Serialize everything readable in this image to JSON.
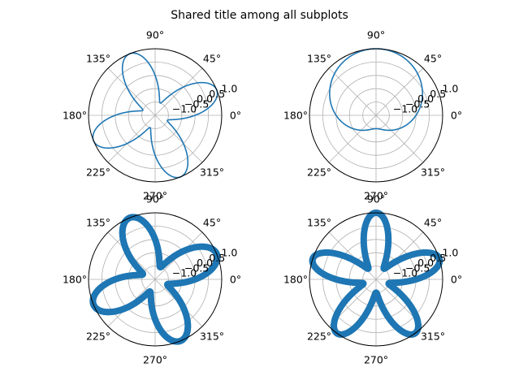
{
  "figure": {
    "suptitle": "Shared title among all subplots"
  },
  "colors": {
    "series": "#1f77b4",
    "grid": "#b0b0b0",
    "spine": "#000000"
  },
  "chart_data": [
    {
      "type": "line",
      "projection": "polar",
      "position": "top-left",
      "function": "r = sin(4*theta)",
      "theta_ticks": [
        "0°",
        "45°",
        "90°",
        "135°",
        "180°",
        "225°",
        "270°",
        "315°"
      ],
      "r_ticks": [
        "−1.0",
        "−0.5",
        "0.0",
        "0.5",
        "1.0"
      ],
      "r_tick_values": [
        -1.0,
        -0.5,
        0.0,
        0.5,
        1.0
      ],
      "rlim": [
        -1.5,
        1.0
      ],
      "grid": true
    },
    {
      "type": "line",
      "projection": "polar",
      "position": "top-right",
      "function": "r = sin(theta)",
      "theta_ticks": [
        "0°",
        "45°",
        "90°",
        "135°",
        "180°",
        "225°",
        "270°",
        "315°"
      ],
      "r_ticks": [
        "−1.0",
        "−0.5",
        "0.0",
        "0.5",
        "1.0"
      ],
      "r_tick_values": [
        -1.0,
        -0.5,
        0.0,
        0.5,
        1.0
      ],
      "rlim": [
        -1.5,
        1.0
      ],
      "grid": true
    },
    {
      "type": "scatter",
      "projection": "polar",
      "position": "bottom-left",
      "function": "r = sin(4*theta)",
      "theta_ticks": [
        "0°",
        "45°",
        "90°",
        "135°",
        "180°",
        "225°",
        "270°",
        "315°"
      ],
      "r_ticks": [
        "−1.0",
        "−0.5",
        "0.0",
        "0.5",
        "1.0"
      ],
      "r_tick_values": [
        -1.0,
        -0.5,
        0.0,
        0.5,
        1.0
      ],
      "rlim": [
        -1.5,
        1.0
      ],
      "grid": true
    },
    {
      "type": "scatter",
      "projection": "polar",
      "position": "bottom-right",
      "function": "r = sin(5*theta)",
      "theta_ticks": [
        "0°",
        "45°",
        "90°",
        "135°",
        "180°",
        "225°",
        "270°",
        "315°"
      ],
      "r_ticks": [
        "−1.0",
        "−0.5",
        "0.0",
        "0.5",
        "1.0"
      ],
      "r_tick_values": [
        -1.0,
        -0.5,
        0.0,
        0.5,
        1.0
      ],
      "rlim": [
        -1.5,
        1.0
      ],
      "grid": true
    }
  ]
}
